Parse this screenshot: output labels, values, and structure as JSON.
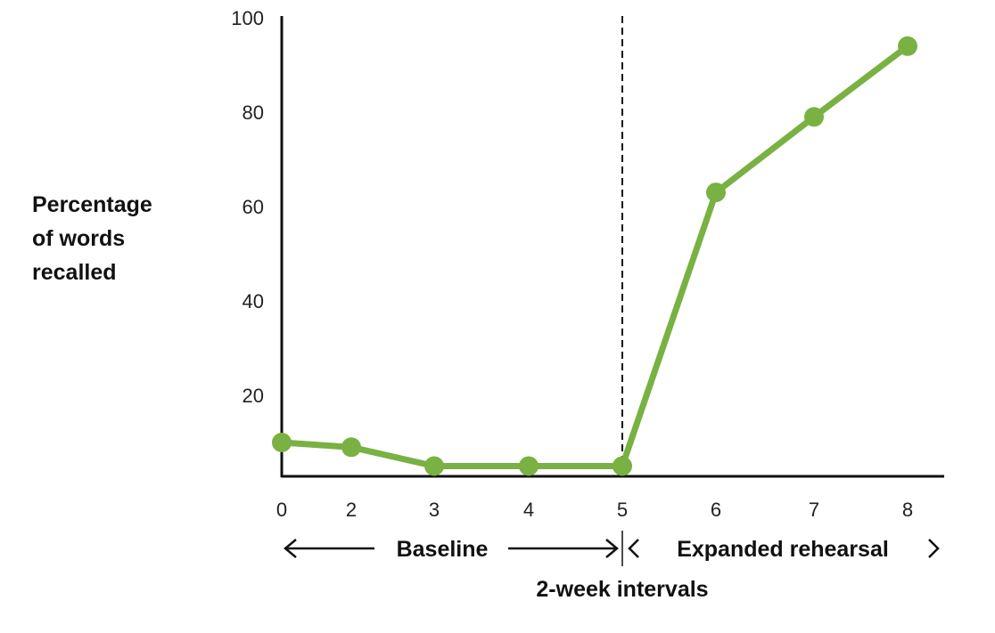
{
  "chart_data": {
    "type": "line",
    "title": "",
    "ylabel": [
      "Percentage",
      "of words",
      "recalled"
    ],
    "xlabel": "2-week intervals",
    "categories": [
      "0",
      "2",
      "3",
      "4",
      "5",
      "6",
      "7",
      "8"
    ],
    "series": [
      {
        "values": [
          10,
          9,
          5,
          5,
          5,
          63,
          79,
          94
        ]
      }
    ],
    "yticks": [
      "20",
      "40",
      "60",
      "80",
      "100"
    ],
    "ylim": [
      0,
      100
    ],
    "grid": false,
    "phase_divider_at": "5",
    "phases": [
      {
        "label": "Baseline",
        "from": "0",
        "to": "5"
      },
      {
        "label": "Expanded rehearsal",
        "from": "5",
        "to": "8"
      }
    ],
    "colors": {
      "series": "#79b142",
      "axis": "#111111"
    }
  }
}
